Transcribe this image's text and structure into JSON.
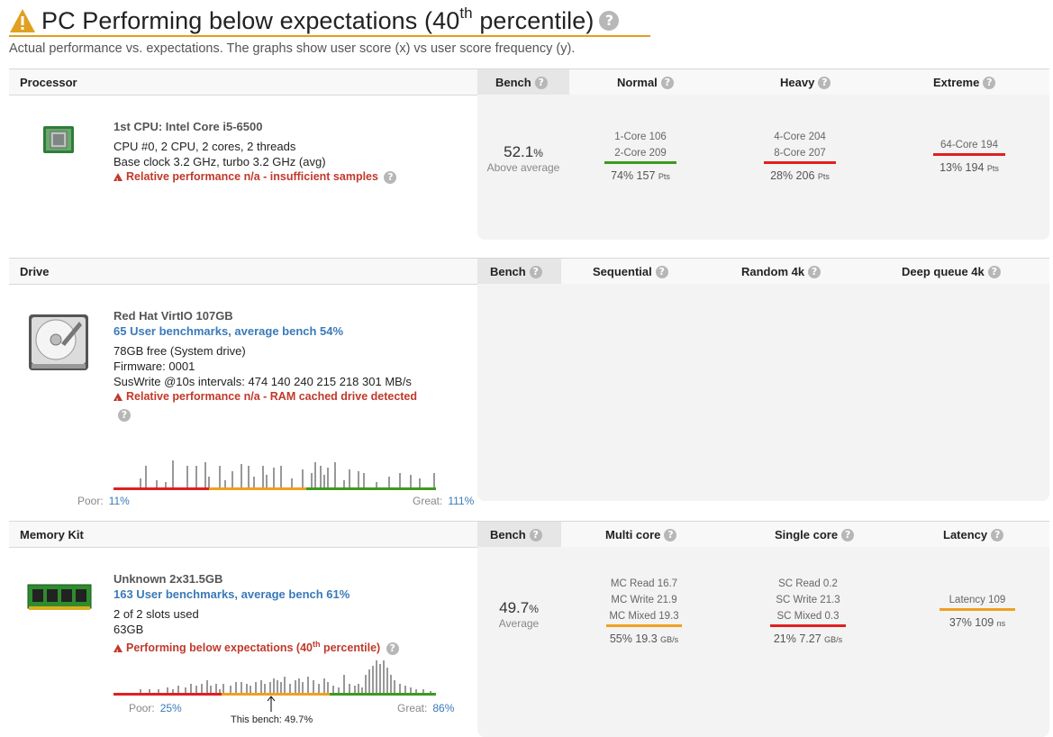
{
  "header": {
    "title_main": "PC Performing below expectations (40",
    "title_sup": "th",
    "title_tail": " percentile)",
    "subtitle": "Actual performance vs. expectations. The graphs show user score (x) vs user score frequency (y).",
    "accent_color": "#e0a020"
  },
  "processor": {
    "section_title": "Processor",
    "col_bench": "Bench",
    "col_normal": "Normal",
    "col_heavy": "Heavy",
    "col_extreme": "Extreme",
    "icon": "cpu-chip-icon",
    "name": "1st CPU: Intel Core i5-6500",
    "line1": "CPU #0, 2 CPU, 2 cores, 2 threads",
    "line2": "Base clock 3.2 GHz, turbo 3.2 GHz (avg)",
    "warning": "Relative performance n/a - insufficient samples",
    "bench_pct": "52.1",
    "bench_unit": "%",
    "bench_label": "Above average",
    "normal": {
      "l1": "1-Core 106",
      "l2": "2-Core 209",
      "res": "74% 157",
      "unit": "Pts",
      "bar": "green"
    },
    "heavy": {
      "l1": "4-Core 204",
      "l2": "8-Core 207",
      "res": "28% 206",
      "unit": "Pts",
      "bar": "red"
    },
    "extreme": {
      "l1": "64-Core 194",
      "res": "13% 194",
      "unit": "Pts",
      "bar": "red"
    }
  },
  "drive": {
    "section_title": "Drive",
    "col_bench": "Bench",
    "col_seq": "Sequential",
    "col_rand": "Random 4k",
    "col_deep": "Deep queue 4k",
    "icon": "hard-drive-icon",
    "name": "Red Hat VirtIO 107GB",
    "link": "65 User benchmarks, average bench 54%",
    "line1": "78GB free (System drive)",
    "line2": "Firmware: 0001",
    "line3": "SusWrite @10s intervals: 474 140 240 215 218 301 MB/s",
    "warning": "Relative performance n/a - RAM cached drive detected",
    "poor_label": "Poor:",
    "poor_val": "11%",
    "great_label": "Great:",
    "great_val": "111%"
  },
  "memory": {
    "section_title": "Memory Kit",
    "col_bench": "Bench",
    "col_multi": "Multi core",
    "col_single": "Single core",
    "col_latency": "Latency",
    "icon": "ram-module-icon",
    "name": "Unknown 2x31.5GB",
    "link": "163 User benchmarks, average bench 61%",
    "line1": "2 of 2 slots used",
    "line2": "63GB",
    "warning_main": "Performing below expectations (40",
    "warning_sup": "th",
    "warning_tail": " percentile)",
    "bench_pct": "49.7",
    "bench_unit": "%",
    "bench_label": "Average",
    "multi": {
      "l1": "MC Read 16.7",
      "l2": "MC Write 21.9",
      "l3": "MC Mixed 19.3",
      "res": "55% 19.3",
      "unit": "GB/s",
      "bar": "orange"
    },
    "single": {
      "l1": "SC Read 0.2",
      "l2": "SC Write 21.3",
      "l3": "SC Mixed 0.3",
      "res": "21% 7.27",
      "unit": "GB/s",
      "bar": "red"
    },
    "latency": {
      "l1": "Latency 109",
      "res": "37% 109",
      "unit": "ns",
      "bar": "orange"
    },
    "poor_label": "Poor:",
    "poor_val": "25%",
    "great_label": "Great:",
    "great_val": "86%",
    "this_bench": "This bench: 49.7%"
  },
  "help_glyph": "?"
}
